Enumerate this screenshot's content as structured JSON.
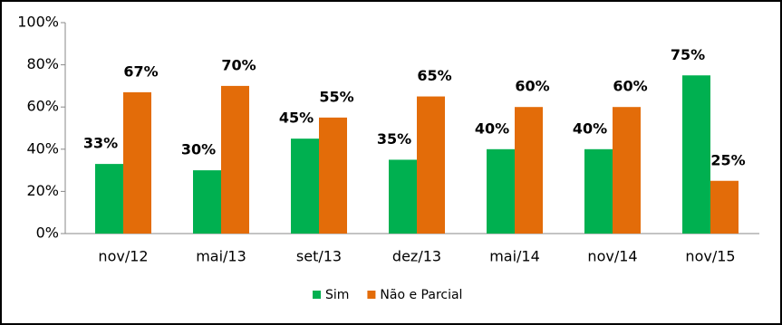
{
  "chart_data": {
    "type": "bar",
    "categories": [
      "nov/12",
      "mai/13",
      "set/13",
      "dez/13",
      "mai/14",
      "nov/14",
      "nov/15"
    ],
    "series": [
      {
        "name": "Sim",
        "color": "#00b050",
        "values": [
          33,
          30,
          45,
          35,
          40,
          40,
          75
        ],
        "value_labels": [
          "33%",
          "30%",
          "45%",
          "35%",
          "40%",
          "40%",
          "75%"
        ]
      },
      {
        "name": "Não e Parcial",
        "color": "#e36c09",
        "values": [
          67,
          70,
          55,
          65,
          60,
          60,
          25
        ],
        "value_labels": [
          "67%",
          "70%",
          "55%",
          "65%",
          "60%",
          "60%",
          "25%"
        ]
      }
    ],
    "ylim": [
      0,
      100
    ],
    "yticks": [
      {
        "value": 0,
        "label": "0%"
      },
      {
        "value": 20,
        "label": "20%"
      },
      {
        "value": 40,
        "label": "40%"
      },
      {
        "value": 60,
        "label": "60%"
      },
      {
        "value": 80,
        "label": "80%"
      },
      {
        "value": 100,
        "label": "100%"
      }
    ],
    "grid": false,
    "legend": "bottom"
  }
}
